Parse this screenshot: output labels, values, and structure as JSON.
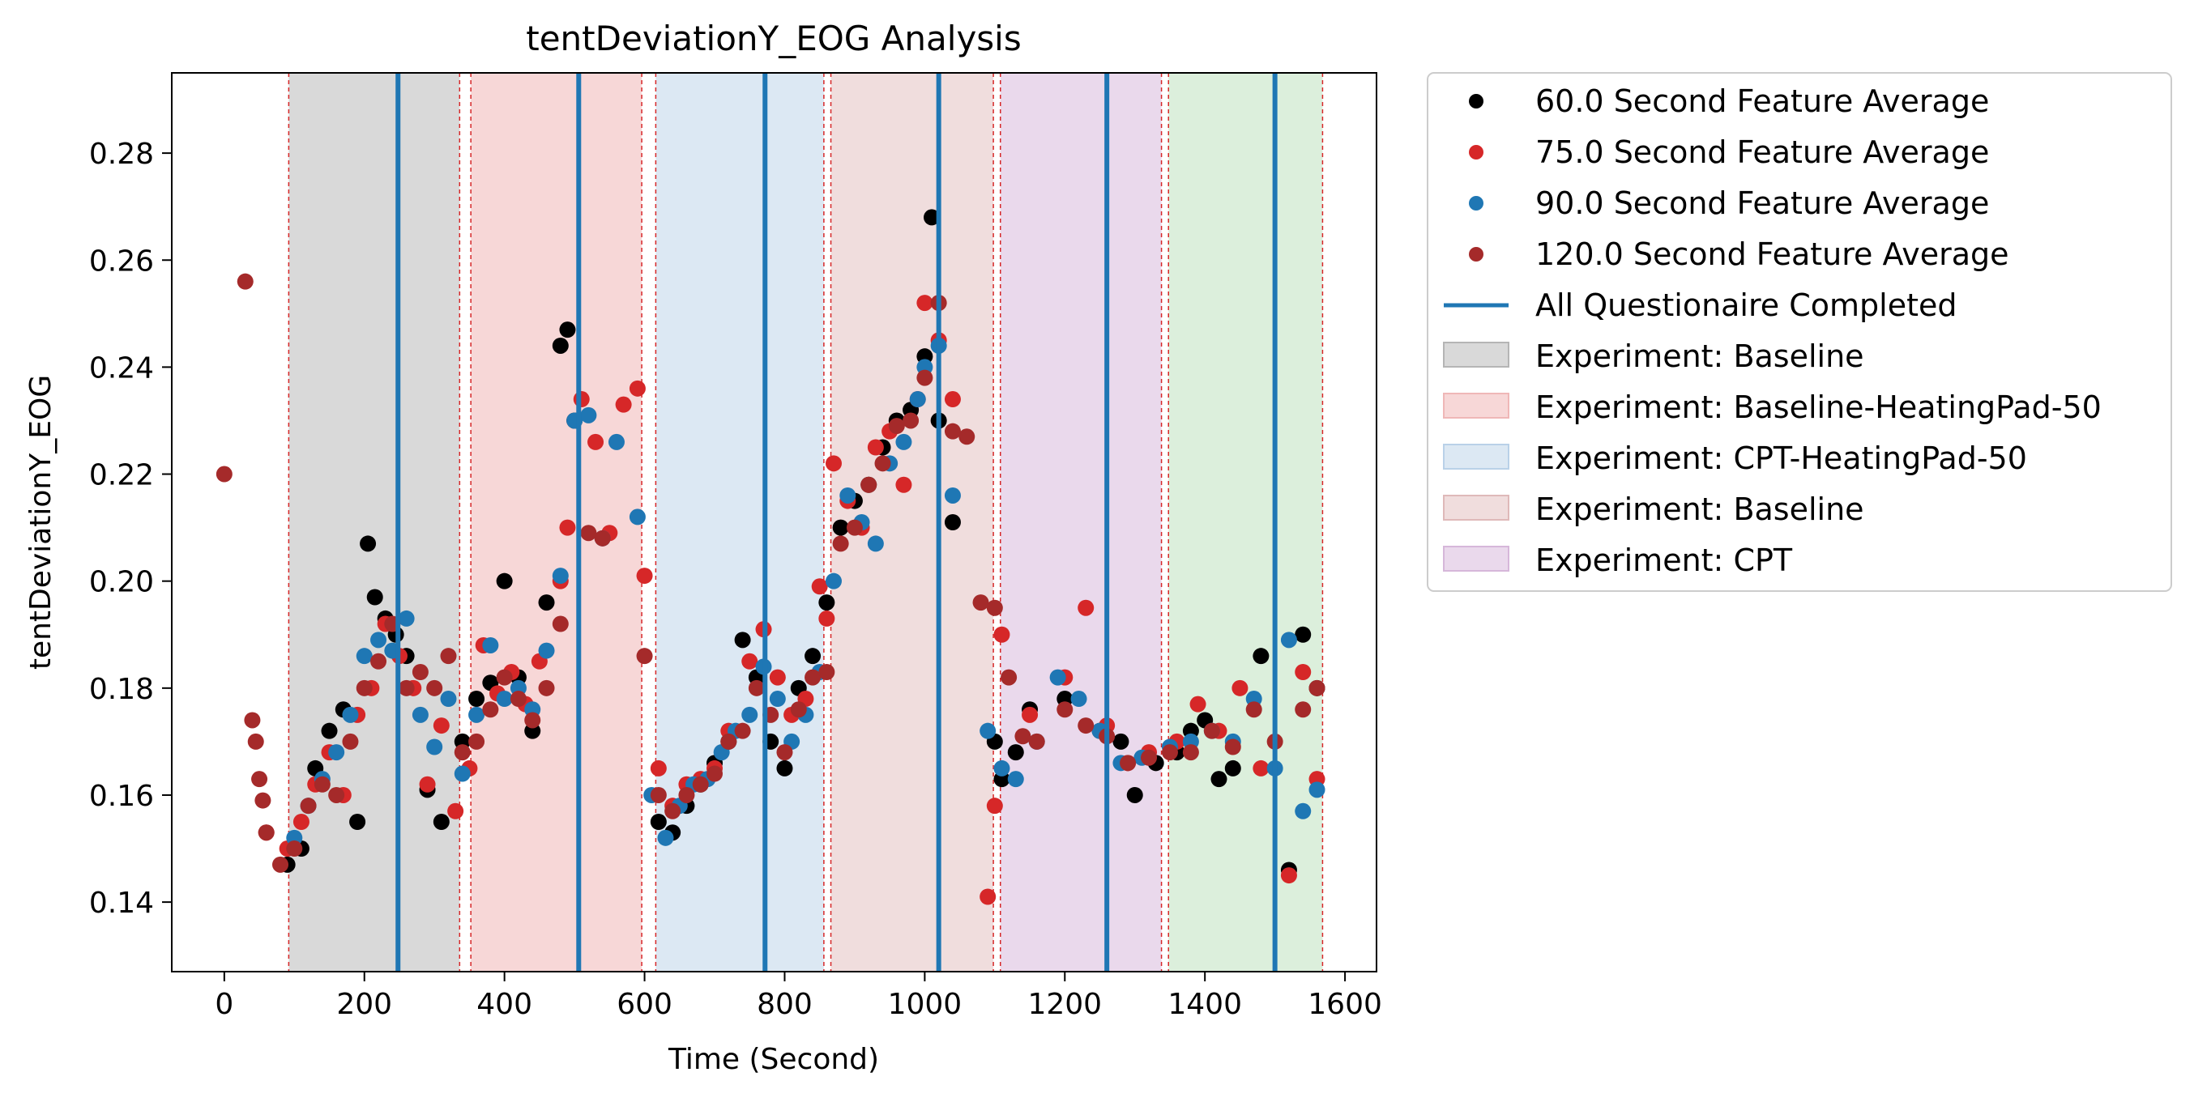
{
  "chart_data": {
    "type": "scatter",
    "title": "tentDeviationY_EOG Analysis",
    "xlabel": "Time (Second)",
    "ylabel": "tentDeviationY_EOG",
    "xlim": [
      -75,
      1645
    ],
    "ylim": [
      0.127,
      0.295
    ],
    "xticks": [
      0,
      200,
      400,
      600,
      800,
      1000,
      1200,
      1400,
      1600
    ],
    "yticks": [
      0.14,
      0.16,
      0.18,
      0.2,
      0.22,
      0.24,
      0.26,
      0.28
    ],
    "xtick_labels": [
      "0",
      "200",
      "400",
      "600",
      "800",
      "1000",
      "1200",
      "1400",
      "1600"
    ],
    "ytick_labels": [
      "0.14",
      "0.16",
      "0.18",
      "0.20",
      "0.22",
      "0.24",
      "0.26",
      "0.28"
    ],
    "grid": false,
    "legend_position": "outside right",
    "series": [
      {
        "name": "60.0 Second Feature Average",
        "color": "#000000",
        "x": [
          90,
          110,
          130,
          150,
          170,
          190,
          205,
          215,
          230,
          245,
          260,
          290,
          310,
          340,
          360,
          380,
          400,
          420,
          440,
          460,
          480,
          490,
          500,
          620,
          640,
          660,
          680,
          700,
          720,
          740,
          760,
          780,
          800,
          820,
          840,
          860,
          880,
          900,
          920,
          940,
          960,
          980,
          1000,
          1010,
          1020,
          1040,
          1100,
          1110,
          1130,
          1150,
          1200,
          1250,
          1280,
          1300,
          1330,
          1360,
          1380,
          1400,
          1420,
          1440,
          1480,
          1520,
          1540,
          1560
        ],
        "y": [
          0.147,
          0.15,
          0.165,
          0.172,
          0.176,
          0.155,
          0.207,
          0.197,
          0.193,
          0.19,
          0.186,
          0.161,
          0.155,
          0.17,
          0.178,
          0.181,
          0.2,
          0.182,
          0.172,
          0.196,
          0.244,
          0.247,
          0.23,
          0.155,
          0.153,
          0.158,
          0.162,
          0.166,
          0.17,
          0.189,
          0.182,
          0.17,
          0.165,
          0.18,
          0.186,
          0.196,
          0.21,
          0.215,
          0.218,
          0.225,
          0.23,
          0.232,
          0.242,
          0.268,
          0.23,
          0.211,
          0.17,
          0.163,
          0.168,
          0.176,
          0.178,
          0.172,
          0.17,
          0.16,
          0.166,
          0.168,
          0.172,
          0.174,
          0.163,
          0.165,
          0.186,
          0.146,
          0.19,
          0.18
        ]
      },
      {
        "name": "75.0 Second Feature Average",
        "color": "#d62728",
        "x": [
          60,
          90,
          110,
          130,
          150,
          170,
          190,
          210,
          230,
          250,
          270,
          290,
          310,
          330,
          350,
          370,
          390,
          410,
          430,
          450,
          480,
          490,
          510,
          530,
          550,
          570,
          590,
          600,
          620,
          640,
          660,
          680,
          700,
          720,
          750,
          770,
          790,
          810,
          830,
          850,
          860,
          870,
          890,
          910,
          930,
          950,
          970,
          990,
          1000,
          1020,
          1040,
          1090,
          1100,
          1110,
          1150,
          1200,
          1230,
          1260,
          1290,
          1320,
          1360,
          1390,
          1420,
          1450,
          1480,
          1520,
          1540,
          1560
        ],
        "y": [
          0.153,
          0.15,
          0.155,
          0.162,
          0.168,
          0.16,
          0.175,
          0.18,
          0.192,
          0.186,
          0.18,
          0.162,
          0.173,
          0.157,
          0.165,
          0.188,
          0.179,
          0.183,
          0.177,
          0.185,
          0.2,
          0.21,
          0.234,
          0.226,
          0.209,
          0.233,
          0.236,
          0.201,
          0.165,
          0.158,
          0.162,
          0.163,
          0.165,
          0.172,
          0.185,
          0.191,
          0.182,
          0.175,
          0.178,
          0.199,
          0.193,
          0.222,
          0.215,
          0.21,
          0.225,
          0.228,
          0.218,
          0.234,
          0.252,
          0.245,
          0.234,
          0.141,
          0.158,
          0.19,
          0.175,
          0.182,
          0.195,
          0.173,
          0.166,
          0.168,
          0.17,
          0.177,
          0.172,
          0.18,
          0.165,
          0.145,
          0.183,
          0.163
        ]
      },
      {
        "name": "90.0 Second Feature Average",
        "color": "#1f77b4",
        "x": [
          100,
          120,
          140,
          160,
          180,
          200,
          220,
          240,
          260,
          280,
          300,
          320,
          340,
          360,
          380,
          400,
          420,
          440,
          460,
          480,
          500,
          520,
          540,
          560,
          590,
          610,
          630,
          650,
          670,
          690,
          710,
          730,
          750,
          770,
          790,
          810,
          830,
          850,
          870,
          890,
          910,
          930,
          950,
          970,
          990,
          1000,
          1020,
          1040,
          1090,
          1110,
          1130,
          1160,
          1190,
          1220,
          1250,
          1280,
          1310,
          1350,
          1380,
          1410,
          1440,
          1470,
          1500,
          1520,
          1540,
          1560
        ],
        "y": [
          0.152,
          0.158,
          0.163,
          0.168,
          0.175,
          0.186,
          0.189,
          0.187,
          0.193,
          0.175,
          0.169,
          0.178,
          0.164,
          0.175,
          0.188,
          0.178,
          0.18,
          0.176,
          0.187,
          0.201,
          0.23,
          0.231,
          0.208,
          0.226,
          0.212,
          0.16,
          0.152,
          0.158,
          0.162,
          0.163,
          0.168,
          0.172,
          0.175,
          0.184,
          0.178,
          0.17,
          0.175,
          0.183,
          0.2,
          0.216,
          0.211,
          0.207,
          0.222,
          0.226,
          0.234,
          0.24,
          0.244,
          0.216,
          0.172,
          0.165,
          0.163,
          0.17,
          0.182,
          0.178,
          0.172,
          0.166,
          0.167,
          0.169,
          0.17,
          0.172,
          0.17,
          0.178,
          0.165,
          0.189,
          0.157,
          0.161
        ]
      },
      {
        "name": "120.0 Second Feature Average",
        "color": "#a52a2a",
        "x": [
          0,
          30,
          40,
          45,
          50,
          55,
          60,
          80,
          100,
          120,
          140,
          160,
          180,
          200,
          220,
          240,
          260,
          280,
          300,
          320,
          340,
          360,
          380,
          400,
          420,
          440,
          460,
          480,
          520,
          540,
          600,
          620,
          640,
          660,
          680,
          700,
          720,
          740,
          760,
          780,
          800,
          820,
          840,
          860,
          880,
          900,
          920,
          940,
          960,
          980,
          1000,
          1020,
          1040,
          1060,
          1080,
          1100,
          1120,
          1140,
          1160,
          1200,
          1230,
          1260,
          1290,
          1320,
          1350,
          1380,
          1410,
          1440,
          1470,
          1500,
          1540,
          1560
        ],
        "y": [
          0.22,
          0.256,
          0.174,
          0.17,
          0.163,
          0.159,
          0.153,
          0.147,
          0.15,
          0.158,
          0.162,
          0.16,
          0.17,
          0.18,
          0.185,
          0.192,
          0.18,
          0.183,
          0.18,
          0.186,
          0.168,
          0.17,
          0.176,
          0.182,
          0.178,
          0.174,
          0.18,
          0.192,
          0.209,
          0.208,
          0.186,
          0.16,
          0.157,
          0.16,
          0.162,
          0.164,
          0.17,
          0.172,
          0.18,
          0.175,
          0.168,
          0.176,
          0.182,
          0.183,
          0.207,
          0.21,
          0.218,
          0.222,
          0.229,
          0.23,
          0.238,
          0.252,
          0.228,
          0.227,
          0.196,
          0.195,
          0.182,
          0.171,
          0.17,
          0.176,
          0.173,
          0.171,
          0.166,
          0.167,
          0.168,
          0.168,
          0.172,
          0.169,
          0.176,
          0.17,
          0.176,
          0.18
        ]
      }
    ],
    "experiment_regions": [
      {
        "label": "Experiment: Baseline",
        "start": 92,
        "end": 336,
        "color": "#d9d9d9",
        "in_legend": true
      },
      {
        "label": "Experiment: Baseline-HeatingPad-50",
        "start": 352,
        "end": 596,
        "color": "#f7d7d7",
        "in_legend": true
      },
      {
        "label": "Experiment: CPT-HeatingPad-50",
        "start": 616,
        "end": 856,
        "color": "#dce8f3",
        "in_legend": true
      },
      {
        "label": "Experiment: Baseline",
        "start": 866,
        "end": 1098,
        "color": "#f0dddd",
        "in_legend": true
      },
      {
        "label": "Experiment: CPT",
        "start": 1108,
        "end": 1338,
        "color": "#ead9ec",
        "in_legend": true
      },
      {
        "label": "",
        "start": 1348,
        "end": 1568,
        "color": "#dcefdc",
        "in_legend": false
      }
    ],
    "boundary_lines_x": [
      92,
      336,
      352,
      596,
      616,
      856,
      866,
      1098,
      1108,
      1338,
      1348,
      1568
    ],
    "questionnaire_lines": {
      "label": "All Questionaire Completed",
      "color": "#1f77b4",
      "x": [
        248,
        506,
        772,
        1020,
        1260,
        1500
      ]
    }
  }
}
